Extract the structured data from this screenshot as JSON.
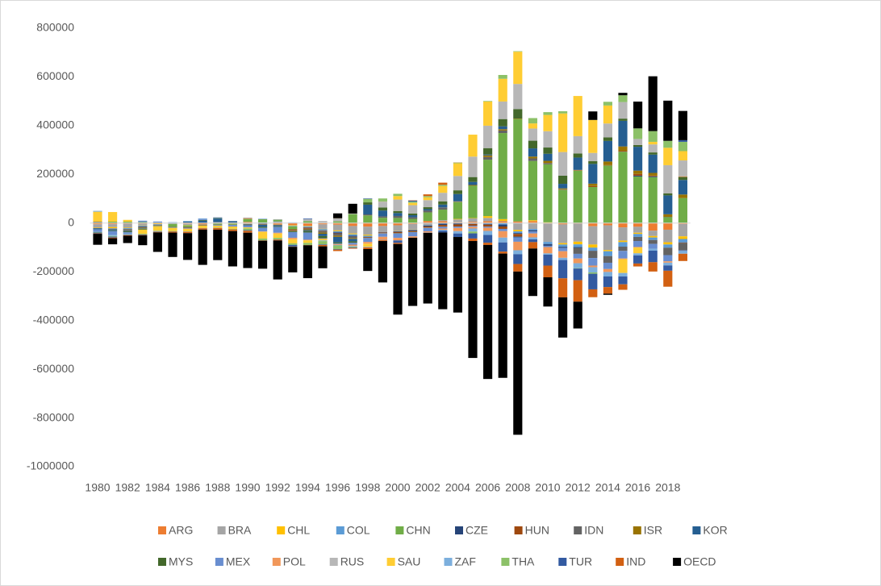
{
  "chart_data": {
    "type": "bar",
    "stacked": true,
    "categories": [
      "1980",
      null,
      "1982",
      null,
      "1984",
      null,
      "1986",
      null,
      "1988",
      null,
      "1990",
      null,
      "1992",
      null,
      "1994",
      null,
      "1996",
      null,
      "1998",
      null,
      "2000",
      null,
      "2002",
      null,
      "2004",
      null,
      "2006",
      null,
      "2008",
      null,
      "2010",
      null,
      "2012",
      null,
      "2014",
      null,
      "2016",
      null,
      "2018",
      null
    ],
    "ylim": [
      -1000000,
      800000
    ],
    "yticks": [
      -1000000,
      -800000,
      -600000,
      -400000,
      -200000,
      0,
      200000,
      400000,
      600000,
      800000
    ],
    "grid": false,
    "legend": "bottom",
    "series": [
      {
        "name": "ARG",
        "color": "#ed7d31",
        "values": [
          -4800,
          -4700,
          -2400,
          -2400,
          -2500,
          -950,
          -2900,
          -4200,
          -1600,
          -1300,
          4500,
          -600,
          -5500,
          -8200,
          -10900,
          -5100,
          -6800,
          -12000,
          -14500,
          -11900,
          -8900,
          -3800,
          8700,
          8100,
          3300,
          5300,
          7800,
          7400,
          6800,
          8300,
          -1600,
          -5300,
          -2100,
          -13100,
          -9200,
          -17600,
          -15100,
          -31100,
          -27100,
          -3500
        ]
      },
      {
        "name": "BRA",
        "color": "#a5a5a5",
        "values": [
          -12800,
          -11700,
          -16300,
          -6800,
          0,
          -200,
          -5300,
          -1400,
          4200,
          1000,
          -3800,
          -1400,
          6100,
          -700,
          -1800,
          -18400,
          -23200,
          -30500,
          -33400,
          -25300,
          -24200,
          -22800,
          -7600,
          4200,
          11700,
          14000,
          13600,
          1600,
          -28200,
          -24300,
          -75800,
          -77000,
          -74200,
          -74800,
          -101400,
          -54500,
          -24500,
          -22000,
          -51500,
          -50900
        ]
      },
      {
        "name": "CHL",
        "color": "#ffc000",
        "values": [
          -2000,
          -4700,
          -2300,
          -1100,
          -2100,
          -1400,
          -1100,
          -800,
          -200,
          -700,
          -500,
          -100,
          -1000,
          -2600,
          -1600,
          -1400,
          -3500,
          -3700,
          -4000,
          -300,
          -900,
          -1100,
          -600,
          -800,
          2200,
          1400,
          7200,
          7400,
          -5800,
          3500,
          3200,
          -5600,
          -11000,
          -12700,
          -4900,
          -5900,
          -5000,
          -6000,
          -9200,
          -10900
        ]
      },
      {
        "name": "COL",
        "color": "#5b9bd5",
        "values": [
          -200,
          -1900,
          -3100,
          -2900,
          -2100,
          -1600,
          400,
          -20,
          -200,
          -200,
          500,
          2300,
          900,
          -2100,
          -3700,
          -4600,
          -4600,
          -5800,
          -4900,
          800,
          700,
          -1100,
          -1400,
          -1000,
          -900,
          -1900,
          -3000,
          -6000,
          -6900,
          -5000,
          -8800,
          -9400,
          -11300,
          -12500,
          -19800,
          -18600,
          -12100,
          -10200,
          -13000,
          -14000
        ]
      },
      {
        "name": "CHN",
        "color": "#70ad47",
        "values": [
          2400,
          5800,
          5700,
          4200,
          2000,
          -11400,
          -7000,
          300,
          -3800,
          -4300,
          12000,
          13300,
          6400,
          -11900,
          7700,
          1600,
          7200,
          37000,
          31500,
          21100,
          20500,
          17400,
          35400,
          43100,
          68900,
          132400,
          231800,
          353200,
          420600,
          243300,
          237800,
          136100,
          215400,
          148200,
          236000,
          293000,
          191300,
          188700,
          24100,
          102900
        ]
      },
      {
        "name": "CZE",
        "color": "#264478",
        "values": [
          0,
          0,
          0,
          0,
          0,
          0,
          0,
          0,
          0,
          0,
          0,
          0,
          0,
          500,
          -800,
          -1400,
          -4100,
          -3600,
          -1300,
          -1500,
          -2700,
          -3300,
          -4300,
          -5800,
          -4600,
          -1300,
          -3400,
          -8000,
          -3700,
          -4900,
          -7000,
          -4900,
          -3200,
          -1100,
          400,
          400,
          3500,
          3200,
          1100,
          -800
        ]
      },
      {
        "name": "HUN",
        "color": "#9e480e",
        "values": [
          -500,
          -700,
          -300,
          300,
          200,
          -500,
          -1500,
          -900,
          -800,
          -600,
          300,
          300,
          300,
          -4300,
          -4100,
          -1700,
          -1700,
          -1000,
          -2300,
          -2500,
          -4000,
          -3200,
          -4600,
          -7200,
          -8600,
          -7400,
          -8000,
          -9800,
          -11000,
          -100,
          300,
          900,
          1700,
          4000,
          1800,
          3400,
          7000,
          3000,
          -100,
          -1300
        ]
      },
      {
        "name": "IDN",
        "color": "#636363",
        "values": [
          2900,
          -500,
          -5300,
          -6300,
          -2000,
          -2000,
          -4000,
          -2100,
          -1400,
          -1100,
          -3000,
          -4300,
          -2800,
          -2100,
          -2800,
          -6400,
          -7700,
          -4900,
          4100,
          5800,
          8000,
          6900,
          7800,
          8100,
          1600,
          300,
          10900,
          10500,
          100,
          10600,
          5100,
          1700,
          -24400,
          -29100,
          -27500,
          -17500,
          -16900,
          -16200,
          -30600,
          -30300
        ]
      },
      {
        "name": "ISR",
        "color": "#997300",
        "values": [
          -700,
          -900,
          -1700,
          -2200,
          -1200,
          800,
          1100,
          -1000,
          -500,
          800,
          400,
          -1000,
          500,
          -1800,
          -3300,
          -4700,
          -5000,
          -3300,
          -1000,
          -900,
          -1300,
          -1600,
          -1100,
          600,
          1700,
          3000,
          6800,
          5400,
          1800,
          7400,
          9200,
          3800,
          1200,
          9700,
          14600,
          17900,
          13600,
          11100,
          11000,
          14500
        ]
      },
      {
        "name": "KOR",
        "color": "#255e91",
        "values": [
          -5000,
          -4600,
          -2600,
          -1600,
          -1400,
          -900,
          4700,
          10000,
          14500,
          5300,
          -2000,
          -8000,
          -3900,
          1000,
          -4000,
          -9700,
          -23000,
          -10000,
          40000,
          24000,
          12000,
          8000,
          5400,
          11900,
          30000,
          12600,
          3500,
          11800,
          -3200,
          33600,
          28900,
          18700,
          50800,
          81100,
          84400,
          105100,
          97900,
          75200,
          77500,
          59700
        ]
      },
      {
        "name": "MYS",
        "color": "#43682b",
        "values": [
          -300,
          -2500,
          -3600,
          -3500,
          -1700,
          -600,
          0,
          2600,
          1900,
          300,
          -900,
          -4200,
          -2200,
          -3100,
          -5600,
          -8600,
          -4500,
          -5900,
          9500,
          12600,
          8500,
          7300,
          8000,
          13400,
          15100,
          20000,
          26200,
          29800,
          38900,
          31500,
          25700,
          33500,
          16900,
          11000,
          14700,
          9100,
          7100,
          8900,
          8000,
          12300
        ]
      },
      {
        "name": "MEX",
        "color": "#698ed0",
        "values": [
          -10400,
          -16200,
          -6200,
          5400,
          4200,
          800,
          -1400,
          4200,
          -2400,
          -5800,
          -7500,
          -14900,
          -24400,
          -23400,
          -29700,
          -1600,
          -2500,
          -7700,
          -16000,
          -13900,
          -18700,
          -17700,
          -14100,
          -7400,
          -5800,
          -4400,
          -4600,
          -9300,
          -17800,
          -8300,
          -5300,
          -13300,
          -19300,
          -31100,
          -25900,
          -31100,
          -24400,
          -19400,
          -25400,
          -3500
        ]
      },
      {
        "name": "POL",
        "color": "#f1975a",
        "values": [
          0,
          0,
          0,
          0,
          0,
          0,
          0,
          0,
          0,
          0,
          3100,
          -1400,
          -3100,
          -5800,
          -2600,
          -2200,
          -3300,
          -5700,
          -6900,
          -12500,
          -10300,
          -5400,
          -5000,
          -5500,
          -13200,
          -7200,
          -13100,
          -26500,
          -34900,
          -16000,
          -25800,
          -27000,
          -19200,
          -6600,
          -11900,
          -2900,
          -2300,
          -200,
          -5500,
          2800
        ]
      },
      {
        "name": "RUS",
        "color": "#b7b7b7",
        "values": [
          0,
          0,
          0,
          0,
          0,
          0,
          0,
          0,
          0,
          0,
          0,
          0,
          0,
          0,
          8000,
          7000,
          12000,
          2000,
          0,
          24000,
          47000,
          34000,
          29000,
          35000,
          59000,
          84000,
          92000,
          72000,
          103000,
          50000,
          67000,
          97000,
          71000,
          34000,
          57000,
          68000,
          25000,
          33000,
          116000,
          65000
        ]
      },
      {
        "name": "SAU",
        "color": "#ffcd33",
        "values": [
          41500,
          39600,
          7600,
          -16900,
          -18400,
          -12900,
          -11800,
          -9800,
          -7300,
          -9500,
          -4100,
          -27500,
          -17700,
          -17300,
          -10500,
          -5300,
          700,
          300,
          -13100,
          400,
          14300,
          9400,
          11900,
          28000,
          52100,
          90100,
          99100,
          93300,
          132300,
          21000,
          66800,
          158500,
          164800,
          135400,
          73800,
          -56700,
          -23800,
          10500,
          71600,
          38200
        ]
      },
      {
        "name": "ZAF",
        "color": "#7cafdd",
        "values": [
          3500,
          -4500,
          -2700,
          -300,
          -1000,
          2400,
          2700,
          2400,
          1100,
          800,
          1700,
          2000,
          1200,
          1600,
          -300,
          -2800,
          -1800,
          -2200,
          -2200,
          -700,
          -200,
          200,
          -800,
          -3300,
          -9600,
          -12500,
          -16700,
          -19700,
          -16100,
          -8200,
          -5500,
          -9100,
          -20200,
          -21600,
          -18400,
          -14400,
          -8700,
          -8100,
          -11400,
          -10600
        ]
      },
      {
        "name": "THA",
        "color": "#8cc168",
        "values": [
          -2100,
          -2600,
          -1000,
          -2900,
          -2100,
          -1500,
          200,
          -400,
          -1700,
          -2500,
          -7300,
          -7600,
          -6300,
          -6400,
          -8100,
          -13600,
          -14700,
          -3100,
          14200,
          12500,
          9300,
          5100,
          4700,
          4800,
          2800,
          -7600,
          2300,
          15700,
          2200,
          21900,
          11500,
          8900,
          -1500,
          -5300,
          15200,
          27800,
          43400,
          44100,
          28400,
          38200
        ]
      },
      {
        "name": "TUR",
        "color": "#335aa1",
        "values": [
          -3400,
          -3900,
          -1900,
          -1900,
          -1400,
          -1000,
          -1500,
          -800,
          1600,
          1000,
          -2600,
          300,
          -900,
          -6400,
          2600,
          -2300,
          -2400,
          -2600,
          2000,
          -900,
          -9900,
          3800,
          -600,
          -7500,
          -14400,
          -21000,
          -31800,
          -37800,
          -40400,
          -11300,
          -44600,
          -75000,
          -48000,
          -64000,
          -43600,
          -32100,
          -33100,
          -47400,
          -21700,
          6800
        ]
      },
      {
        "name": "IND",
        "color": "#d26012",
        "values": [
          -1800,
          -2700,
          -2500,
          -1900,
          -2300,
          -4100,
          -4600,
          -5100,
          -7000,
          -6800,
          -7800,
          -1200,
          -3500,
          -1200,
          -1200,
          -5600,
          -6000,
          -3000,
          -6900,
          -3200,
          -4600,
          1400,
          7100,
          8800,
          800,
          -10300,
          -9300,
          -8100,
          -30900,
          -26200,
          -48100,
          -78200,
          -88200,
          -32300,
          -26900,
          -22500,
          -12100,
          -38200,
          -65600,
          -29800
        ]
      },
      {
        "name": "OECD",
        "color": "#000000",
        "values": [
          -45000,
          -25000,
          -30000,
          -40000,
          -80000,
          -100000,
          -110000,
          -145000,
          -125000,
          -145000,
          -145000,
          -115000,
          -160000,
          -105000,
          -135000,
          -90000,
          20000,
          40000,
          -90000,
          -170000,
          -290000,
          -280000,
          -290000,
          -315000,
          -310000,
          -480000,
          -550000,
          -510000,
          -670000,
          -195000,
          -120000,
          -165000,
          -110000,
          35000,
          -5000,
          10000,
          110000,
          225000,
          165000,
          120000
        ]
      }
    ]
  }
}
